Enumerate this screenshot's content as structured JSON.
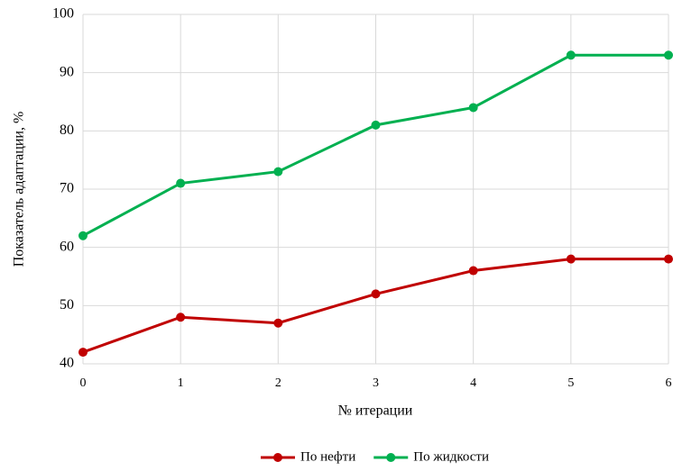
{
  "chart_data": {
    "type": "line",
    "x_label": "№ итерации",
    "y_label": "Показатель адаптации, %",
    "x": [
      0,
      1,
      2,
      3,
      4,
      5,
      6
    ],
    "series": [
      {
        "name": "По нефти",
        "color": "#c00000",
        "values": [
          42,
          48,
          47,
          52,
          56,
          58,
          58
        ]
      },
      {
        "name": "По жидкости",
        "color": "#00b050",
        "values": [
          62,
          71,
          73,
          81,
          84,
          93,
          93
        ]
      }
    ],
    "xlim": [
      0,
      6
    ],
    "xticks": [
      0,
      1,
      2,
      3,
      4,
      5,
      6
    ],
    "ylim": [
      40,
      100
    ],
    "yticks": [
      40,
      50,
      60,
      70,
      80,
      90,
      100
    ],
    "grid": true,
    "legend": "bottom"
  }
}
